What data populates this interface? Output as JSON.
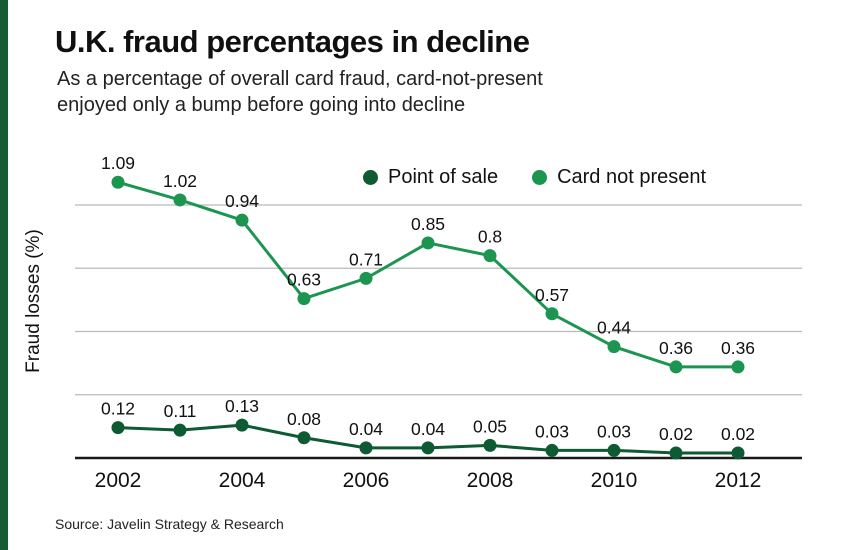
{
  "header": {
    "title": "U.K. fraud percentages in decline",
    "subtitle_line1": "As a percentage of overall card fraud, card-not-present",
    "subtitle_line2": "enjoyed only a bump before going into decline"
  },
  "accent_color": "#175c33",
  "chart_data": {
    "type": "line",
    "x": [
      2002,
      2003,
      2004,
      2005,
      2006,
      2007,
      2008,
      2009,
      2010,
      2011,
      2012
    ],
    "series": [
      {
        "name": "Point of sale",
        "color": "#0e5a32",
        "values": [
          0.12,
          0.11,
          0.13,
          0.08,
          0.04,
          0.04,
          0.05,
          0.03,
          0.03,
          0.02,
          0.02
        ]
      },
      {
        "name": "Card not present",
        "color": "#1b9550",
        "values": [
          1.09,
          1.02,
          0.94,
          0.63,
          0.71,
          0.85,
          0.8,
          0.57,
          0.44,
          0.36,
          0.36
        ]
      }
    ],
    "title": "U.K. fraud percentages in decline",
    "xlabel": "",
    "ylabel": "Fraud losses (%)",
    "xticks": [
      2002,
      2004,
      2006,
      2008,
      2010,
      2012
    ],
    "ylim": [
      0,
      1.2
    ],
    "gridlines": [
      0,
      0.25,
      0.5,
      0.75,
      1.0
    ],
    "grid": "horizontal",
    "legend_position": "top-center"
  },
  "source": "Source: Javelin Strategy & Research"
}
